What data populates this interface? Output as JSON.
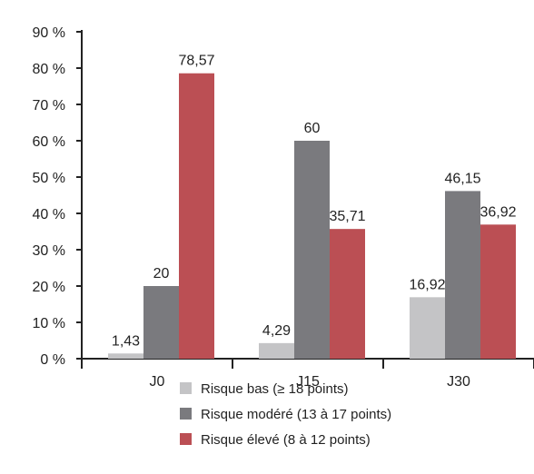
{
  "chart_data": {
    "type": "bar",
    "categories": [
      "J0",
      "J15",
      "J30"
    ],
    "series": [
      {
        "name": "Risque bas (≥ 18 points)",
        "color": "#c4c4c6",
        "values": [
          1.43,
          4.29,
          16.92
        ],
        "labels": [
          "1,43",
          "4,29",
          "16,92"
        ]
      },
      {
        "name": "Risque modéré (13 à 17 points)",
        "color": "#7a7a7e",
        "values": [
          20,
          60,
          46.15
        ],
        "labels": [
          "20",
          "60",
          "46,15"
        ]
      },
      {
        "name": "Risque élevé (8 à 12 points)",
        "color": "#bb4f54",
        "values": [
          78.57,
          35.71,
          36.92
        ],
        "labels": [
          "78,57",
          "35,71",
          "36,92"
        ]
      }
    ],
    "yticks": [
      "0 %",
      "10 %",
      "20 %",
      "30 %",
      "40 %",
      "50 %",
      "60 %",
      "70 %",
      "80 %",
      "90 %"
    ],
    "ylim": [
      0,
      90
    ],
    "legend_position": "bottom",
    "grid": false,
    "title": "",
    "xlabel": "",
    "ylabel": ""
  }
}
